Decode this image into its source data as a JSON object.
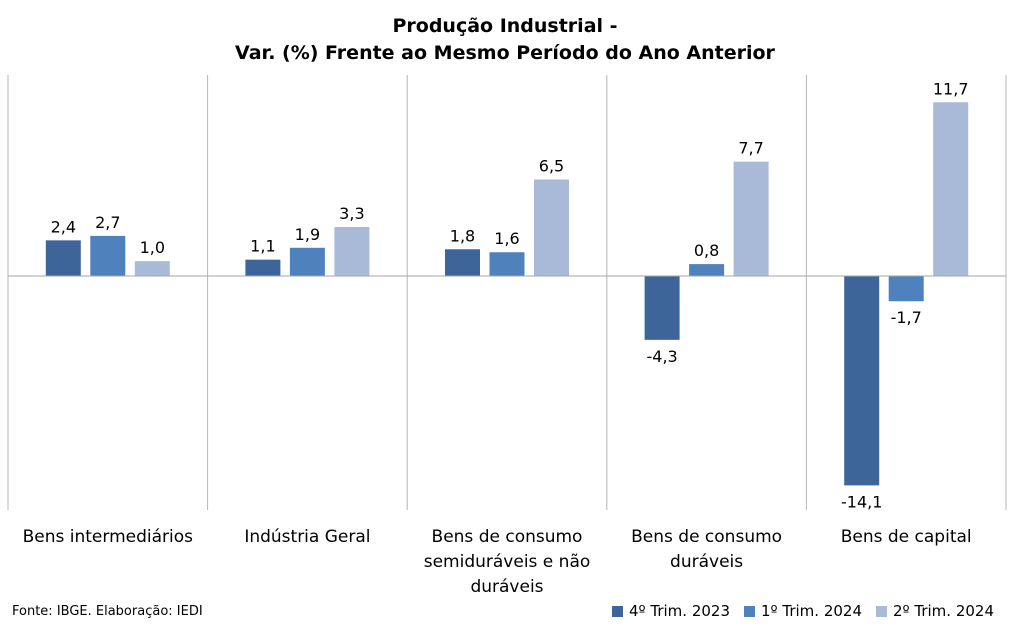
{
  "chart_data": {
    "type": "bar",
    "title": [
      "Produção Industrial -",
      "Var. (%)  Frente ao Mesmo Período do Ano Anterior"
    ],
    "categories": [
      [
        "Bens intermediários"
      ],
      [
        "Indústria Geral"
      ],
      [
        "Bens de consumo",
        "semiduráveis e não",
        "duráveis"
      ],
      [
        "Bens de consumo",
        "duráveis"
      ],
      [
        "Bens de capital"
      ]
    ],
    "series": [
      {
        "name": "4º Trim. 2023",
        "color": "#3e6599",
        "values": [
          2.4,
          1.1,
          1.8,
          -4.3,
          -14.1
        ],
        "labels": [
          "2,4",
          "1,1",
          "1,8",
          "-4,3",
          "-14,1"
        ]
      },
      {
        "name": "1º Trim. 2024",
        "color": "#4f81bd",
        "values": [
          2.7,
          1.9,
          1.6,
          0.8,
          -1.7
        ],
        "labels": [
          "2,7",
          "1,9",
          "1,6",
          "0,8",
          "-1,7"
        ]
      },
      {
        "name": "2º Trim. 2024",
        "color": "#a9b9d8",
        "values": [
          1.0,
          3.3,
          6.5,
          7.7,
          11.7
        ],
        "labels": [
          "1,0",
          "3,3",
          "6,5",
          "7,7",
          "11,7"
        ]
      }
    ],
    "ylim": [
      -15.5,
      13.5
    ],
    "grid": "vertical separators between categories",
    "legend_position": "bottom-right"
  },
  "footer": {
    "source": "Fonte: IBGE. Elaboração: IEDI"
  }
}
